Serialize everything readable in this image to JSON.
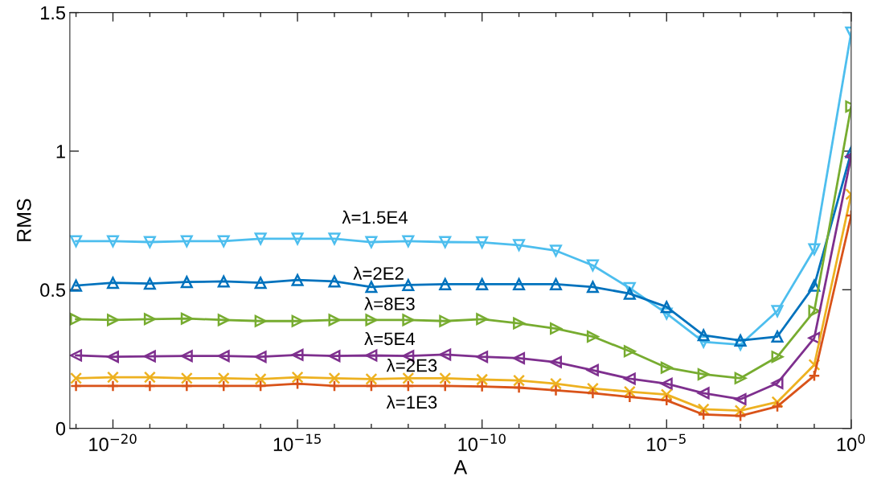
{
  "chart_data": {
    "type": "line",
    "xlabel": "A",
    "ylabel": "RMS",
    "log": "x",
    "grid": false,
    "line_style": "solid",
    "x": [
      1e-21,
      1e-20,
      1e-19,
      1e-18,
      1e-17,
      1e-16,
      1e-15,
      1e-14,
      1e-13,
      1e-12,
      1e-11,
      1e-10,
      1e-09,
      1e-08,
      1e-07,
      1e-06,
      1e-05,
      0.0001,
      0.001,
      0.01,
      0.1,
      1
    ],
    "xlim": [
      6.8e-22,
      1
    ],
    "xticks": [
      {
        "value": 1e-21,
        "label": null
      },
      {
        "value": 1e-20,
        "label": "10$^{−20}$"
      },
      {
        "value": 1e-19,
        "label": null
      },
      {
        "value": 1e-18,
        "label": null
      },
      {
        "value": 1e-17,
        "label": null
      },
      {
        "value": 1e-16,
        "label": null
      },
      {
        "value": 1e-15,
        "label": "10$^{−15}$"
      },
      {
        "value": 1e-14,
        "label": null
      },
      {
        "value": 1e-13,
        "label": null
      },
      {
        "value": 1e-12,
        "label": null
      },
      {
        "value": 1e-11,
        "label": null
      },
      {
        "value": 1e-10,
        "label": "10$^{−10}$"
      },
      {
        "value": 1e-09,
        "label": null
      },
      {
        "value": 1e-08,
        "label": null
      },
      {
        "value": 1e-07,
        "label": null
      },
      {
        "value": 1e-06,
        "label": null
      },
      {
        "value": 1e-05,
        "label": "10$^{−5}$"
      },
      {
        "value": 0.0001,
        "label": null
      },
      {
        "value": 0.001,
        "label": null
      },
      {
        "value": 0.01,
        "label": null
      },
      {
        "value": 0.1,
        "label": null
      },
      {
        "value": 1,
        "label": "10$^{0}$"
      }
    ],
    "ylim": [
      0,
      1.5
    ],
    "yticks": [
      0,
      0.5,
      1,
      1.5
    ],
    "series": [
      {
        "name": "λ=1.5E4",
        "color": "#4dbeee",
        "marker": "triangle-down",
        "values": [
          0.675,
          0.675,
          0.672,
          0.675,
          0.675,
          0.684,
          0.684,
          0.684,
          0.672,
          0.675,
          0.672,
          0.671,
          0.661,
          0.641,
          0.588,
          0.506,
          0.414,
          0.312,
          0.302,
          0.423,
          0.646,
          1.428
        ]
      },
      {
        "name": "λ=2E2",
        "color": "#0072bd",
        "marker": "triangle-up",
        "values": [
          0.515,
          0.525,
          0.522,
          0.528,
          0.53,
          0.525,
          0.535,
          0.53,
          0.51,
          0.517,
          0.52,
          0.52,
          0.52,
          0.52,
          0.51,
          0.486,
          0.438,
          0.336,
          0.317,
          0.331,
          0.515,
          0.996
        ]
      },
      {
        "name": "λ=8E3",
        "color": "#77ac30",
        "marker": "triangle-right",
        "values": [
          0.394,
          0.391,
          0.394,
          0.396,
          0.391,
          0.387,
          0.387,
          0.391,
          0.391,
          0.391,
          0.387,
          0.394,
          0.379,
          0.36,
          0.331,
          0.278,
          0.219,
          0.195,
          0.181,
          0.258,
          0.423,
          1.161
        ]
      },
      {
        "name": "λ=5E4",
        "color": "#7e2f8e",
        "marker": "triangle-left",
        "values": [
          0.263,
          0.258,
          0.26,
          0.261,
          0.261,
          0.258,
          0.265,
          0.261,
          0.263,
          0.261,
          0.266,
          0.258,
          0.253,
          0.239,
          0.21,
          0.179,
          0.161,
          0.127,
          0.105,
          0.163,
          0.326,
          0.981
        ]
      },
      {
        "name": "λ=2E3",
        "color": "#edb120",
        "marker": "cross",
        "values": [
          0.181,
          0.184,
          0.184,
          0.181,
          0.181,
          0.178,
          0.184,
          0.181,
          0.178,
          0.181,
          0.181,
          0.176,
          0.173,
          0.161,
          0.144,
          0.132,
          0.122,
          0.069,
          0.064,
          0.095,
          0.229,
          0.844
        ]
      },
      {
        "name": "λ=1E3",
        "color": "#d95319",
        "marker": "plus",
        "values": [
          0.153,
          0.153,
          0.153,
          0.153,
          0.153,
          0.153,
          0.161,
          0.153,
          0.153,
          0.153,
          0.153,
          0.151,
          0.147,
          0.137,
          0.127,
          0.113,
          0.101,
          0.05,
          0.045,
          0.079,
          0.19,
          0.768
        ]
      }
    ]
  }
}
